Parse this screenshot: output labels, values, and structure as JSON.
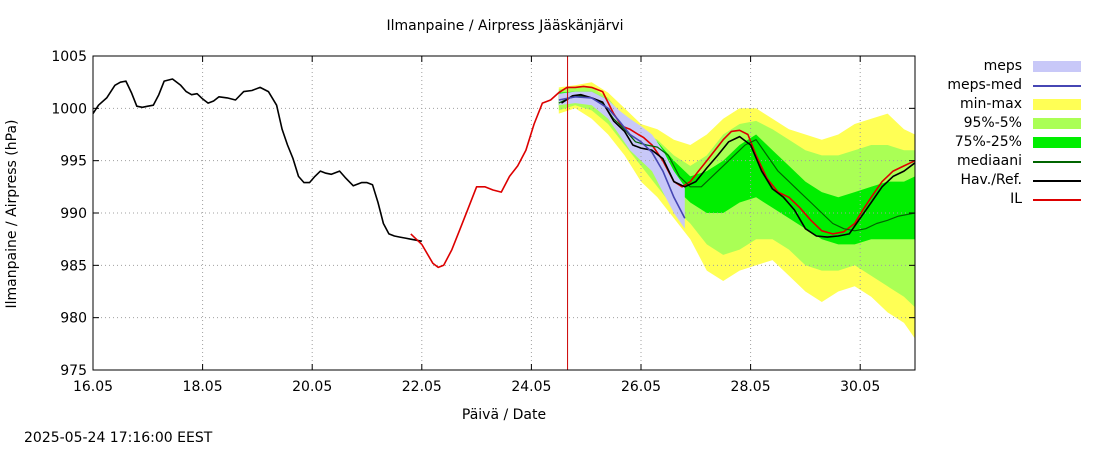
{
  "chart_data": {
    "type": "line",
    "title": "Ilmanpaine / Airpress Jääskänjärvi",
    "xlabel": "Päivä / Date",
    "ylabel": "Ilmanpaine / Airpress (hPa)",
    "timestamp": "2025-05-24 17:16:00 EEST",
    "xlim": [
      16.0,
      31.0
    ],
    "ylim": [
      975,
      1005
    ],
    "y_ticks": [
      975,
      980,
      985,
      990,
      995,
      1000,
      1005
    ],
    "x_ticks": [
      {
        "value": 16,
        "label": "16.05"
      },
      {
        "value": 18,
        "label": "18.05"
      },
      {
        "value": 20,
        "label": "20.05"
      },
      {
        "value": 22,
        "label": "22.05"
      },
      {
        "value": 24,
        "label": "24.05"
      },
      {
        "value": 26,
        "label": "26.05"
      },
      {
        "value": 28,
        "label": "28.05"
      },
      {
        "value": 30,
        "label": "30.05"
      }
    ],
    "grid": true,
    "legend_position": "right",
    "now_marker_x": 24.66,
    "legend": [
      {
        "key": "meps",
        "label": "meps",
        "kind": "box",
        "color": "#c8c8f8"
      },
      {
        "key": "meps_med",
        "label": "meps-med",
        "kind": "line",
        "color": "#4646b4"
      },
      {
        "key": "minmax",
        "label": "min-max",
        "kind": "box",
        "color": "#ffff55"
      },
      {
        "key": "p95_5",
        "label": "95%-5%",
        "kind": "box",
        "color": "#aaff55"
      },
      {
        "key": "p75_25",
        "label": "75%-25%",
        "kind": "box",
        "color": "#00ee00"
      },
      {
        "key": "median",
        "label": "mediaani",
        "kind": "line",
        "color": "#006400"
      },
      {
        "key": "obs",
        "label": "Hav./Ref.",
        "kind": "line",
        "color": "#000000"
      },
      {
        "key": "il",
        "label": "IL",
        "kind": "line",
        "color": "#dd0000"
      }
    ],
    "series": [
      {
        "key": "obs",
        "x": [
          16.0,
          16.1,
          16.25,
          16.4,
          16.5,
          16.6,
          16.7,
          16.8,
          16.9,
          17.0,
          17.1,
          17.2,
          17.3,
          17.45,
          17.6,
          17.7,
          17.8,
          17.9,
          18.0,
          18.1,
          18.2,
          18.3,
          18.45,
          18.6,
          18.75,
          18.9,
          19.05,
          19.2,
          19.35,
          19.45,
          19.55,
          19.65,
          19.75,
          19.85,
          19.95,
          20.05,
          20.15,
          20.25,
          20.35,
          20.5,
          20.6,
          20.75,
          20.9,
          21.0,
          21.1,
          21.2,
          21.3,
          21.4,
          21.5,
          21.6,
          21.7,
          21.8,
          21.9,
          22.0
        ],
        "y": [
          999.5,
          1000.3,
          1001.0,
          1002.2,
          1002.5,
          1002.6,
          1001.5,
          1000.2,
          1000.1,
          1000.2,
          1000.3,
          1001.3,
          1002.6,
          1002.8,
          1002.2,
          1001.6,
          1001.3,
          1001.4,
          1000.9,
          1000.5,
          1000.7,
          1001.1,
          1001.0,
          1000.8,
          1001.6,
          1001.7,
          1002.0,
          1001.6,
          1000.3,
          998.0,
          996.5,
          995.2,
          993.5,
          992.9,
          992.9,
          993.5,
          994.0,
          993.8,
          993.7,
          994.0,
          993.4,
          992.6,
          992.9,
          992.9,
          992.7,
          991.0,
          989.0,
          988.0,
          987.8,
          987.7,
          987.6,
          987.5,
          987.4,
          987.3
        ]
      },
      {
        "key": "il",
        "x": [
          21.8,
          22.0,
          22.2,
          22.3,
          22.4,
          22.55,
          22.7,
          22.85,
          23.0,
          23.15,
          23.3,
          23.45,
          23.6,
          23.75,
          23.9,
          24.05,
          24.2,
          24.35,
          24.5,
          24.65,
          24.8,
          24.95,
          25.1,
          25.3,
          25.5,
          25.65,
          25.8,
          25.95,
          26.05,
          26.2,
          26.4,
          26.6,
          26.75,
          26.9,
          27.05,
          27.2,
          27.35,
          27.5,
          27.65,
          27.8,
          27.95,
          28.1,
          28.3,
          28.5,
          28.7,
          28.9,
          29.1,
          29.3,
          29.5,
          29.7,
          29.9,
          30.05,
          30.2,
          30.4,
          30.6,
          30.8,
          31.0
        ],
        "y": [
          988.0,
          987.0,
          985.2,
          984.8,
          985.0,
          986.5,
          988.5,
          990.5,
          992.5,
          992.5,
          992.2,
          992.0,
          993.5,
          994.5,
          996.0,
          998.5,
          1000.5,
          1000.8,
          1001.5,
          1002.0,
          1002.0,
          1002.1,
          1002.0,
          1001.6,
          999.5,
          998.3,
          998.0,
          997.5,
          997.2,
          996.5,
          995.0,
          993.0,
          992.5,
          993.0,
          994.0,
          995.0,
          996.0,
          997.0,
          997.8,
          997.9,
          997.5,
          995.5,
          993.3,
          992.0,
          991.5,
          990.5,
          989.3,
          988.3,
          988.0,
          988.2,
          989.0,
          990.3,
          991.5,
          993.0,
          994.0,
          994.5,
          995.0
        ]
      },
      {
        "key": "median",
        "x": [
          24.5,
          24.7,
          24.9,
          25.1,
          25.3,
          25.5,
          25.7,
          25.9,
          26.1,
          26.3,
          26.5,
          26.7,
          26.9,
          27.1,
          27.3,
          27.5,
          27.7,
          27.9,
          28.1,
          28.3,
          28.5,
          28.7,
          28.9,
          29.1,
          29.3,
          29.5,
          29.7,
          29.9,
          30.1,
          30.3,
          30.5,
          30.7,
          31.0
        ],
        "y": [
          1000.5,
          1001.0,
          1001.2,
          1001.0,
          1000.5,
          999.0,
          998.0,
          996.8,
          996.5,
          996.3,
          995.5,
          993.5,
          992.5,
          992.5,
          993.5,
          994.5,
          995.5,
          996.5,
          997.0,
          995.5,
          994.0,
          993.0,
          992.0,
          991.0,
          990.0,
          989.0,
          988.5,
          988.3,
          988.5,
          989.0,
          989.3,
          989.7,
          990.0
        ]
      },
      {
        "key": "obs",
        "x": [
          24.55,
          24.75,
          24.9,
          25.1,
          25.3,
          25.5,
          25.7,
          25.85,
          26.0,
          26.2,
          26.4,
          26.6,
          26.8,
          27.0,
          27.2,
          27.4,
          27.6,
          27.8,
          28.0,
          28.2,
          28.4,
          28.6,
          28.8,
          29.0,
          29.2,
          29.4,
          29.6,
          29.8,
          30.0,
          30.2,
          30.4,
          30.6,
          30.8,
          31.0
        ],
        "y": [
          1000.5,
          1001.2,
          1001.3,
          1001.0,
          1000.6,
          998.8,
          997.8,
          996.5,
          996.2,
          996.0,
          995.2,
          993.0,
          992.5,
          993.0,
          994.3,
          995.5,
          996.8,
          997.3,
          996.5,
          994.0,
          992.3,
          991.5,
          990.3,
          988.5,
          987.8,
          987.7,
          987.8,
          988.0,
          989.5,
          991.0,
          992.5,
          993.5,
          994.0,
          994.8
        ]
      },
      {
        "key": "meps_med",
        "x": [
          24.5,
          24.8,
          25.1,
          25.4,
          25.6,
          25.8,
          26.0,
          26.2,
          26.4,
          26.6,
          26.8
        ],
        "y": [
          1000.8,
          1001.1,
          1001.0,
          1000.0,
          998.8,
          997.5,
          996.8,
          995.8,
          994.0,
          991.5,
          989.5
        ]
      }
    ],
    "bands": [
      {
        "key": "minmax",
        "x": [
          24.5,
          24.8,
          25.1,
          25.4,
          25.7,
          26.0,
          26.3,
          26.6,
          26.9,
          27.2,
          27.5,
          27.8,
          28.1,
          28.4,
          28.7,
          29.0,
          29.3,
          29.6,
          29.9,
          30.2,
          30.5,
          30.8,
          31.0
        ],
        "lo": [
          999.5,
          1000.0,
          999.0,
          997.5,
          995.5,
          993.0,
          991.5,
          989.5,
          987.5,
          984.5,
          983.5,
          984.5,
          985.0,
          985.5,
          984.0,
          982.5,
          981.5,
          982.5,
          983.0,
          982.0,
          980.5,
          979.5,
          978.0
        ],
        "hi": [
          1002.0,
          1002.2,
          1002.5,
          1001.5,
          1000.0,
          998.5,
          998.0,
          997.0,
          996.5,
          997.5,
          999.0,
          1000.0,
          1000.0,
          999.0,
          998.0,
          997.5,
          997.0,
          997.5,
          998.5,
          999.0,
          999.5,
          998.0,
          997.5
        ]
      },
      {
        "key": "p95_5",
        "x": [
          24.5,
          24.8,
          25.1,
          25.4,
          25.7,
          26.0,
          26.3,
          26.6,
          26.9,
          27.2,
          27.5,
          27.8,
          28.1,
          28.4,
          28.7,
          29.0,
          29.3,
          29.6,
          29.9,
          30.2,
          30.5,
          30.8,
          31.0
        ],
        "lo": [
          999.8,
          1000.3,
          999.8,
          998.5,
          996.5,
          994.5,
          992.5,
          990.5,
          989.0,
          987.0,
          986.0,
          986.5,
          987.5,
          987.5,
          986.5,
          985.0,
          984.5,
          984.5,
          985.0,
          984.0,
          983.0,
          982.0,
          981.0
        ],
        "hi": [
          1001.8,
          1002.0,
          1002.0,
          1001.0,
          999.0,
          997.8,
          997.0,
          995.5,
          994.5,
          995.5,
          997.5,
          998.5,
          998.8,
          998.0,
          997.0,
          996.0,
          995.5,
          995.5,
          996.0,
          996.5,
          996.5,
          996.0,
          996.0
        ]
      },
      {
        "key": "p75_25",
        "x": [
          24.5,
          24.8,
          25.1,
          25.4,
          25.7,
          26.0,
          26.3,
          26.6,
          26.9,
          27.2,
          27.5,
          27.8,
          28.1,
          28.4,
          28.7,
          29.0,
          29.3,
          29.6,
          29.9,
          30.2,
          30.5,
          30.8,
          31.0
        ],
        "lo": [
          1000.3,
          1000.8,
          1000.5,
          999.3,
          997.5,
          995.5,
          994.5,
          992.5,
          991.0,
          990.0,
          990.0,
          991.0,
          991.5,
          990.5,
          989.5,
          988.5,
          987.5,
          987.0,
          987.0,
          987.5,
          987.5,
          987.5,
          987.5
        ],
        "hi": [
          1001.5,
          1001.6,
          1001.6,
          1000.8,
          999.0,
          997.5,
          996.8,
          995.0,
          993.5,
          994.0,
          995.0,
          996.5,
          997.5,
          996.0,
          994.5,
          993.0,
          992.0,
          991.5,
          992.0,
          992.5,
          993.0,
          993.0,
          993.5
        ]
      },
      {
        "key": "meps",
        "x": [
          24.5,
          24.8,
          25.1,
          25.4,
          25.6,
          25.8,
          26.0,
          26.2,
          26.4,
          26.6,
          26.8
        ],
        "lo": [
          1000.3,
          1000.5,
          1000.3,
          999.0,
          997.5,
          996.0,
          995.0,
          994.0,
          992.0,
          990.0,
          988.5
        ],
        "hi": [
          1001.4,
          1001.6,
          1001.6,
          1000.8,
          999.8,
          999.0,
          998.3,
          997.5,
          996.0,
          994.0,
          992.5
        ]
      }
    ]
  }
}
